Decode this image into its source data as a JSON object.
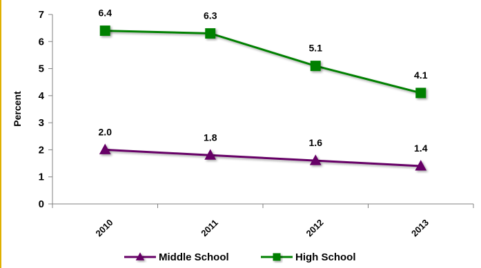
{
  "chart_data": {
    "type": "line",
    "ylabel": "Percent",
    "xlabel": "",
    "ylim": [
      0,
      7
    ],
    "yticks": [
      "0",
      "1",
      "2",
      "3",
      "4",
      "5",
      "6",
      "7"
    ],
    "categories": [
      "2010",
      "2011",
      "2012",
      "2013"
    ],
    "grid": false,
    "legend_position": "bottom",
    "series": [
      {
        "name": "Middle School",
        "values": [
          2.0,
          1.8,
          1.6,
          1.4
        ],
        "labels": [
          "2.0",
          "1.8",
          "1.6",
          "1.4"
        ],
        "color": "#660066",
        "marker": "triangle"
      },
      {
        "name": "High School",
        "values": [
          6.4,
          6.3,
          5.1,
          4.1
        ],
        "labels": [
          "6.4",
          "6.3",
          "5.1",
          "4.1"
        ],
        "color": "#008000",
        "marker": "square"
      }
    ]
  }
}
